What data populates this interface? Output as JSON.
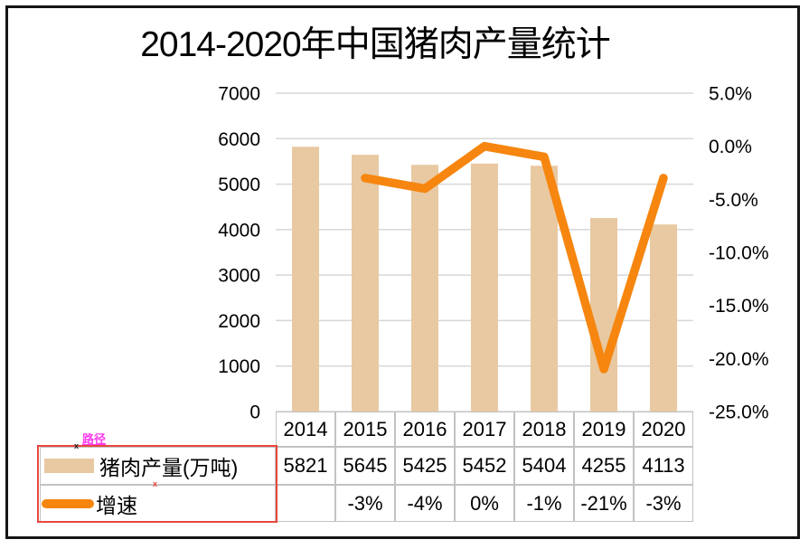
{
  "chart_data": {
    "type": "bar",
    "subtype": "combo-bar-line",
    "title": "2014-2020年中国猪肉产量统计",
    "categories": [
      "2014",
      "2015",
      "2016",
      "2017",
      "2018",
      "2019",
      "2020"
    ],
    "series": [
      {
        "name": "猪肉产量(万吨)",
        "type": "bar",
        "axis": "left",
        "color": "#E8C9A2",
        "values": [
          5821,
          5645,
          5425,
          5452,
          5404,
          4255,
          4113
        ],
        "display": [
          "5821",
          "5645",
          "5425",
          "5452",
          "5404",
          "4255",
          "4113"
        ]
      },
      {
        "name": "增速",
        "type": "line",
        "axis": "right",
        "color": "#F6860F",
        "values": [
          null,
          -3,
          -4,
          0,
          -1,
          -21,
          -3
        ],
        "display": [
          "",
          "-3%",
          "-4%",
          "0%",
          "-1%",
          "-21%",
          "-3%"
        ]
      }
    ],
    "left_axis": {
      "ticks": [
        "7000",
        "6000",
        "5000",
        "4000",
        "3000",
        "2000",
        "1000",
        "0"
      ],
      "min": 0,
      "max": 7000
    },
    "right_axis": {
      "ticks": [
        "5.0%",
        "0.0%",
        "-5.0%",
        "-10.0%",
        "-15.0%",
        "-20.0%",
        "-25.0%"
      ],
      "min": -25,
      "max": 5
    },
    "grid": true,
    "legend_position": "table-left",
    "gridline_color": "#D7D7D7",
    "table_border_color": "#C2C2C2"
  },
  "annotations": {
    "path_label": "路径",
    "path_label_color": "#FF3CEF",
    "mark1": "x",
    "mark2": "x",
    "mark2_color": "#E8403A",
    "box_color": "#E8473F"
  }
}
